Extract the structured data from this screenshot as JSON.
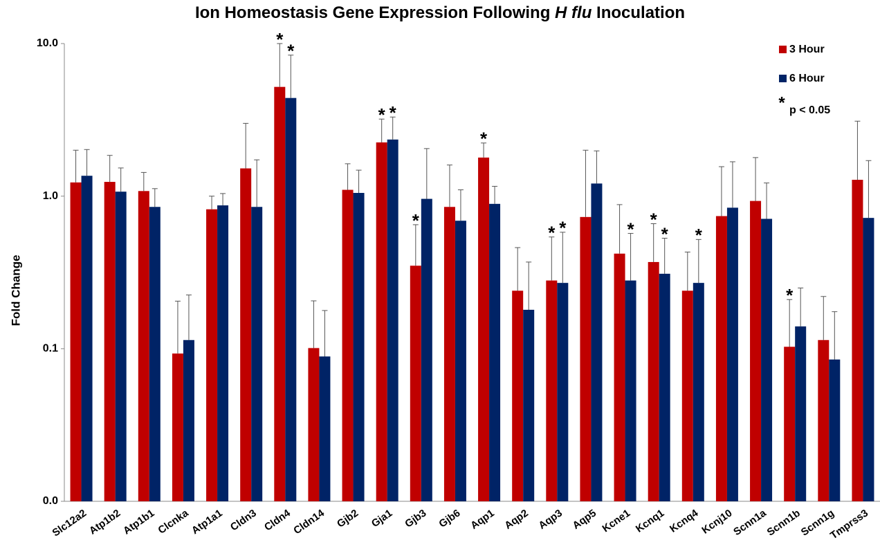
{
  "chart_data": {
    "type": "bar",
    "title": [
      {
        "text": "Ion Homeostasis Gene Expression Following "
      },
      {
        "text": "H flu",
        "italic": true
      },
      {
        "text": " Inoculation"
      }
    ],
    "ylabel": "Fold Change",
    "categories": [
      "Slc12a2",
      "Atp1b2",
      "Atp1b1",
      "Clcnka",
      "Atp1a1",
      "Cldn3",
      "Cldn4",
      "Cldn14",
      "Gjb2",
      "Gja1",
      "Gjb3",
      "Gjb6",
      "Aqp1",
      "Aqp2",
      "Aqp3",
      "Aqp5",
      "Kcne1",
      "Kcnq1",
      "Kcnq4",
      "Kcnj10",
      "Scnn1a",
      "Scnn1b",
      "Scnn1g",
      "Tmprss3"
    ],
    "series": [
      {
        "name": "3 Hour",
        "color": "#c00000",
        "values": [
          1.23,
          1.24,
          1.08,
          0.093,
          0.82,
          1.52,
          5.2,
          0.101,
          1.1,
          2.25,
          0.35,
          0.85,
          1.79,
          0.24,
          0.28,
          0.73,
          0.42,
          0.37,
          0.24,
          0.74,
          0.93,
          0.103,
          0.114,
          1.28
        ],
        "error_upper": [
          2.0,
          1.85,
          1.43,
          0.205,
          1.0,
          3.0,
          10,
          0.206,
          1.63,
          3.2,
          0.65,
          1.6,
          2.23,
          0.46,
          0.54,
          2.0,
          0.88,
          0.66,
          0.43,
          1.56,
          1.79,
          0.21,
          0.22,
          3.1
        ],
        "significant": [
          false,
          false,
          false,
          false,
          false,
          false,
          true,
          false,
          false,
          true,
          true,
          false,
          true,
          false,
          true,
          false,
          false,
          true,
          false,
          false,
          false,
          true,
          false,
          false
        ]
      },
      {
        "name": "6 Hour",
        "color": "#002366",
        "values": [
          1.36,
          1.07,
          0.85,
          0.114,
          0.87,
          0.85,
          4.4,
          0.089,
          1.05,
          2.35,
          0.96,
          0.69,
          0.89,
          0.18,
          0.27,
          1.21,
          0.28,
          0.31,
          0.27,
          0.84,
          0.71,
          0.14,
          0.085,
          0.72
        ],
        "error_upper": [
          2.02,
          1.53,
          1.12,
          0.225,
          1.04,
          1.73,
          8.4,
          0.178,
          1.48,
          3.3,
          2.05,
          1.1,
          1.16,
          0.37,
          0.58,
          1.98,
          0.57,
          0.53,
          0.52,
          1.68,
          1.22,
          0.25,
          0.175,
          1.71
        ],
        "significant": [
          false,
          false,
          false,
          false,
          false,
          false,
          true,
          false,
          false,
          true,
          false,
          false,
          false,
          false,
          true,
          false,
          true,
          true,
          true,
          false,
          false,
          false,
          false,
          false
        ]
      }
    ],
    "significance_marker": "*",
    "significance_note": "p < 0.05",
    "log_scale": true,
    "ylim": [
      0.01,
      10
    ],
    "yticks": [
      {
        "value": 0.01,
        "label": "0.0"
      },
      0.1,
      {
        "value": 1,
        "label": "1.0"
      },
      {
        "value": 10,
        "label": "10.0"
      }
    ],
    "legend": "top-right"
  }
}
